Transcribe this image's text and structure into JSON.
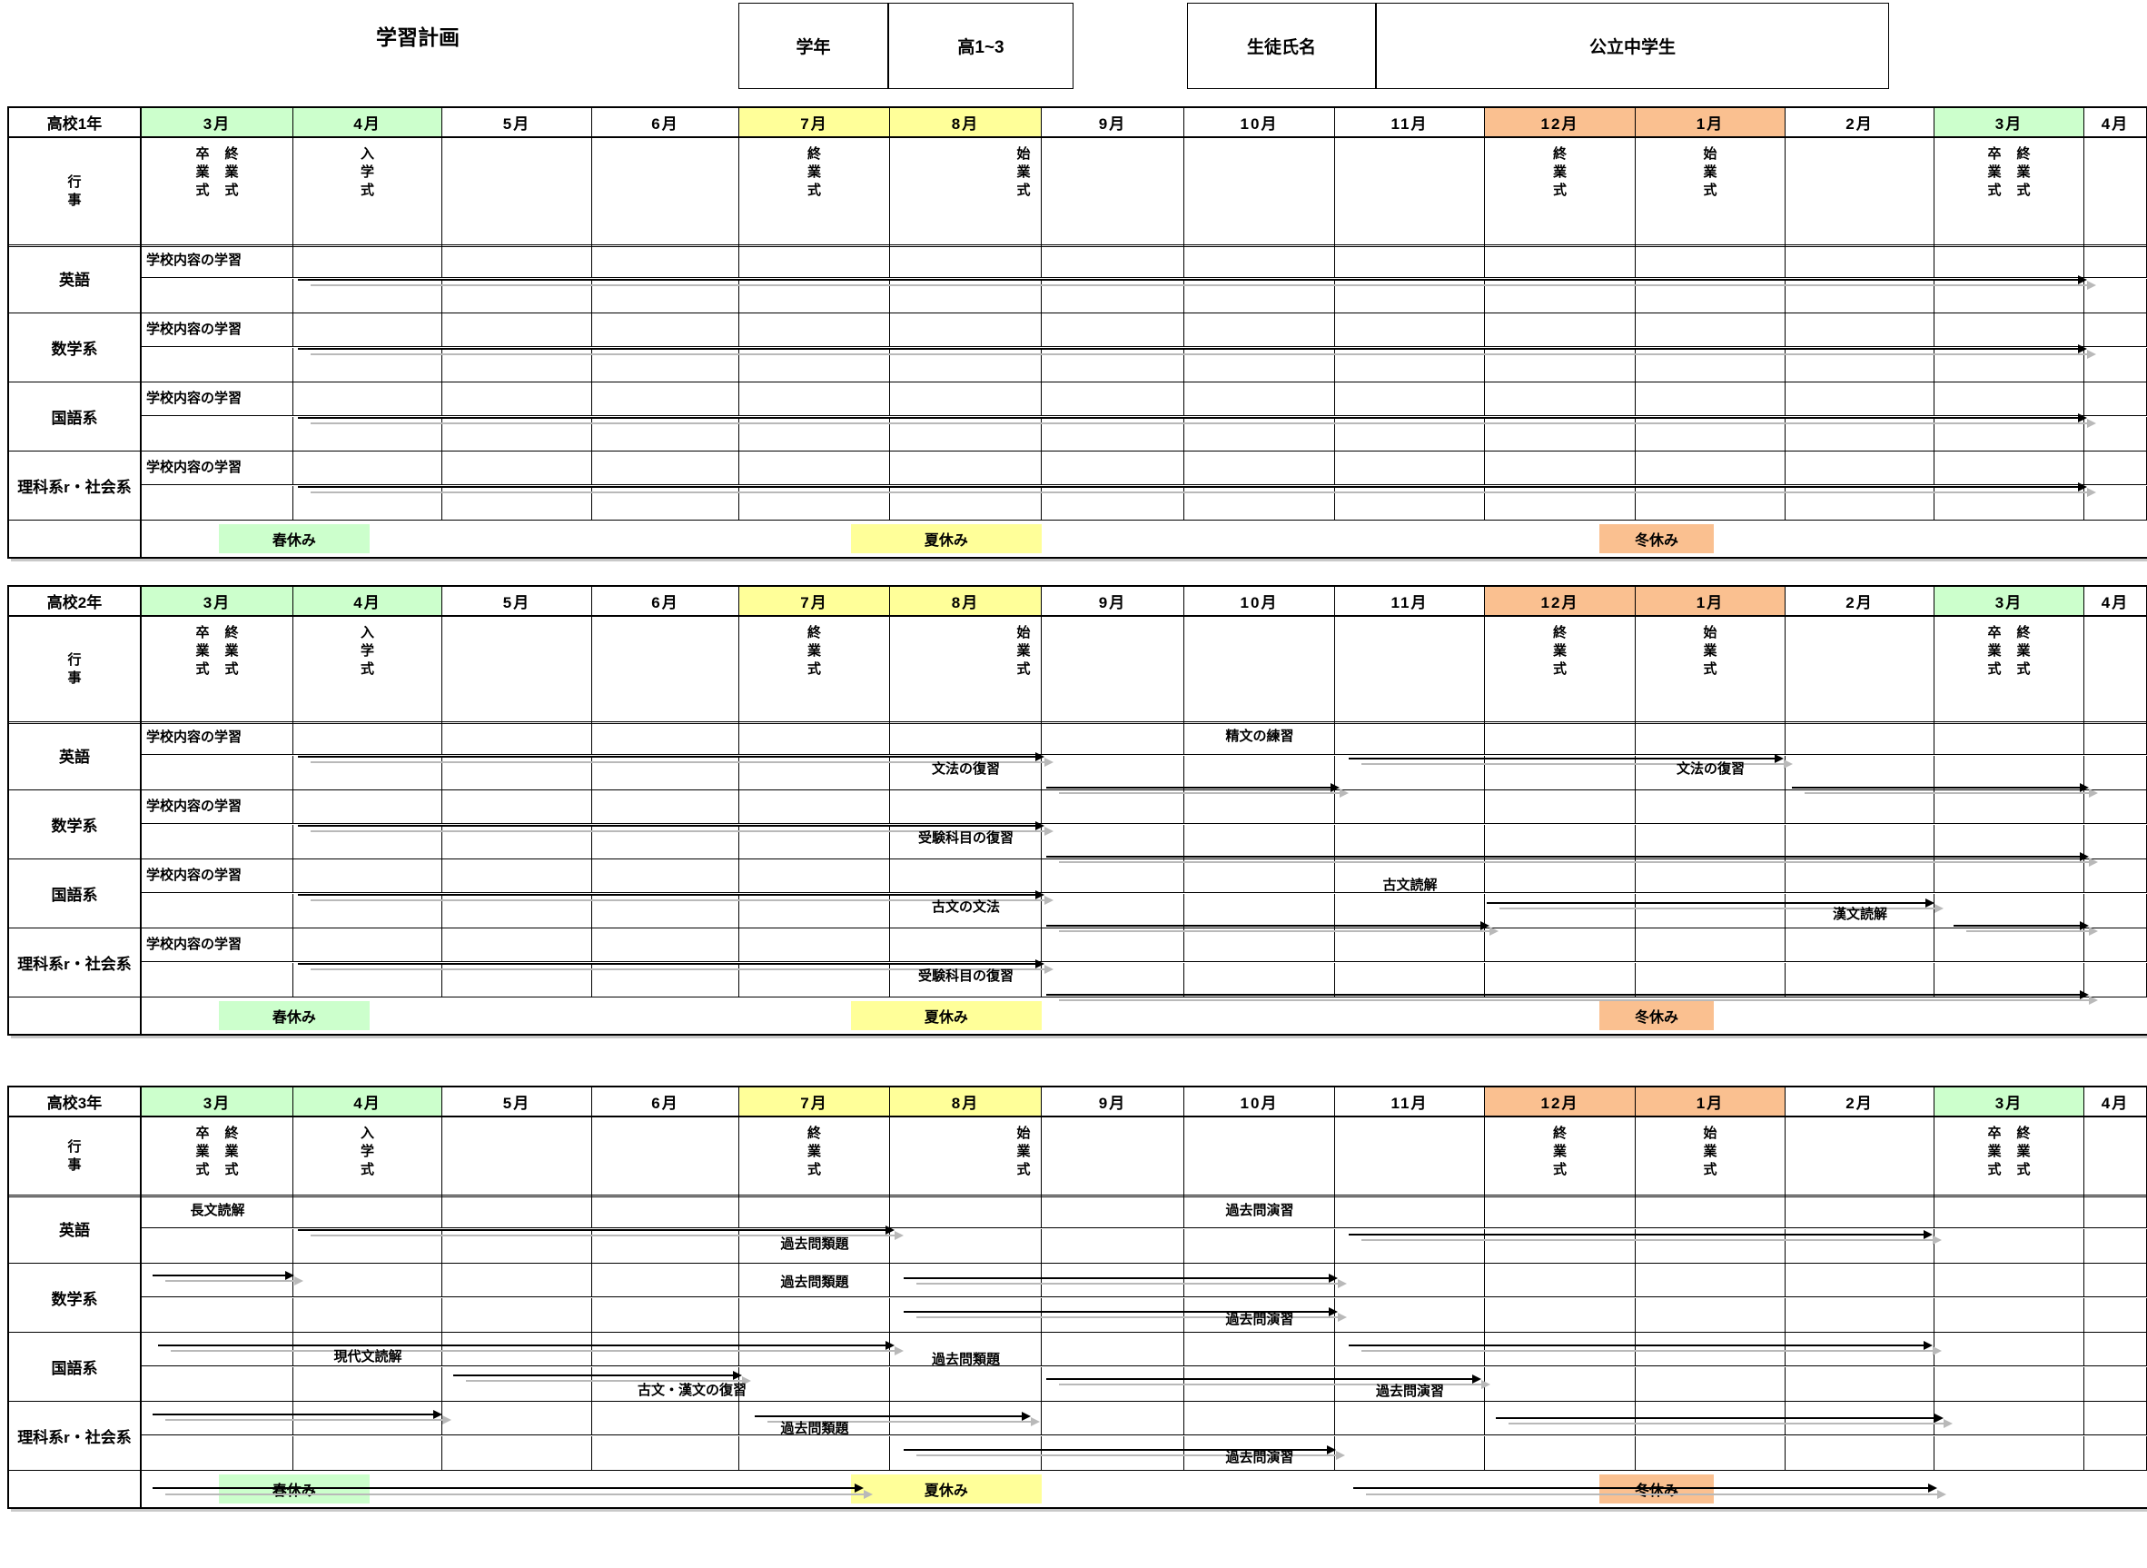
{
  "form": {
    "title": "学習計画",
    "grade_label": "学年",
    "grade_value": "高1~3",
    "student_label": "生徒氏名",
    "student_value": "公立中学生"
  },
  "colors": {
    "spring_green": "#ccffcc",
    "summer_yellow": "#ffff99",
    "winter_orange": "#fac090",
    "arrow_black": "#000000",
    "arrow_shadow": "#b9b9b9"
  },
  "months": [
    {
      "label": "3月",
      "bg": "#ccffcc"
    },
    {
      "label": "4月",
      "bg": "#ccffcc"
    },
    {
      "label": "5月",
      "bg": ""
    },
    {
      "label": "6月",
      "bg": ""
    },
    {
      "label": "7月",
      "bg": "#ffff99"
    },
    {
      "label": "8月",
      "bg": "#ffff99"
    },
    {
      "label": "9月",
      "bg": ""
    },
    {
      "label": "10月",
      "bg": ""
    },
    {
      "label": "11月",
      "bg": ""
    },
    {
      "label": "12月",
      "bg": "#fac090"
    },
    {
      "label": "1月",
      "bg": "#fac090"
    },
    {
      "label": "2月",
      "bg": ""
    },
    {
      "label": "3月",
      "bg": "#ccffcc"
    },
    {
      "label": "4月",
      "bg": ""
    }
  ],
  "gyoji_label": "行事",
  "events": [
    {
      "m": 1,
      "texts": [
        "卒業式",
        "終業式"
      ]
    },
    {
      "m": 2,
      "texts": [
        "入学式"
      ]
    },
    {
      "m": 5,
      "texts": [
        "終業式"
      ]
    },
    {
      "m": 6,
      "texts": [
        "始業式"
      ],
      "align": "right"
    },
    {
      "m": 10,
      "texts": [
        "終業式"
      ]
    },
    {
      "m": 11,
      "texts": [
        "始業式"
      ]
    },
    {
      "m": 13,
      "texts": [
        "卒業式",
        "終業式"
      ]
    }
  ],
  "breaks": [
    {
      "label": "春休み",
      "color": "#ccffcc",
      "s": 1.51,
      "e": 2.51
    },
    {
      "label": "夏休み",
      "color": "#ffff99",
      "s": 5.74,
      "e": 7.0
    },
    {
      "label": "冬休み",
      "color": "#fac090",
      "s": 10.76,
      "e": 11.52
    }
  ],
  "tables": [
    {
      "year": "高校1年",
      "subjects": [
        {
          "name": "英語",
          "items": [
            {
              "t": "label",
              "text": "学校内容の学習"
            },
            {
              "t": "arrow",
              "s": 2.03,
              "e": 13.97,
              "y": 0.5
            }
          ]
        },
        {
          "name": "数学系",
          "items": [
            {
              "t": "label",
              "text": "学校内容の学習"
            },
            {
              "t": "arrow",
              "s": 2.03,
              "e": 13.97,
              "y": 0.5
            }
          ]
        },
        {
          "name": "国語系",
          "items": [
            {
              "t": "label",
              "text": "学校内容の学習"
            },
            {
              "t": "arrow",
              "s": 2.03,
              "e": 13.97,
              "y": 0.5
            }
          ]
        },
        {
          "name": "理科系r・社会系",
          "items": [
            {
              "t": "label",
              "text": "学校内容の学習"
            },
            {
              "t": "arrow",
              "s": 2.03,
              "e": 13.97,
              "y": 0.5
            }
          ]
        }
      ],
      "break_arrows": []
    },
    {
      "year": "高校2年",
      "subjects": [
        {
          "name": "英語",
          "items": [
            {
              "t": "label",
              "text": "学校内容の学習"
            },
            {
              "t": "arrow",
              "s": 2.03,
              "e": 6.97,
              "y": 0.5
            },
            {
              "t": "text",
              "text": "精文の練習",
              "m": 8,
              "y": 0.22
            },
            {
              "t": "arrow",
              "s": 9.09,
              "e": 11.94,
              "y": 0.52
            },
            {
              "t": "text",
              "text": "文法の復習",
              "m": 6,
              "y": 0.7
            },
            {
              "t": "arrow",
              "s": 7.03,
              "e": 8.98,
              "y": 0.95
            },
            {
              "t": "text",
              "text": "文法の復習",
              "m": 11,
              "y": 0.7
            },
            {
              "t": "arrow",
              "s": 12.04,
              "e": 13.98,
              "y": 0.95
            }
          ]
        },
        {
          "name": "数学系",
          "items": [
            {
              "t": "label",
              "text": "学校内容の学習"
            },
            {
              "t": "arrow",
              "s": 2.03,
              "e": 6.97,
              "y": 0.5
            },
            {
              "t": "text",
              "text": "受験科目の復習",
              "m": 6,
              "y": 0.7
            },
            {
              "t": "arrow",
              "s": 7.03,
              "e": 13.98,
              "y": 0.95
            }
          ]
        },
        {
          "name": "国語系",
          "items": [
            {
              "t": "label",
              "text": "学校内容の学習"
            },
            {
              "t": "arrow",
              "s": 2.03,
              "e": 6.97,
              "y": 0.5
            },
            {
              "t": "text",
              "text": "古文読解",
              "m": 9,
              "y": 0.38
            },
            {
              "t": "arrow",
              "s": 10.01,
              "e": 12.95,
              "y": 0.62
            },
            {
              "t": "text",
              "text": "古文の文法",
              "m": 6,
              "y": 0.7
            },
            {
              "t": "arrow",
              "s": 7.03,
              "e": 9.98,
              "y": 0.95
            },
            {
              "t": "text",
              "text": "漢文読解",
              "m": 12,
              "y": 0.8
            },
            {
              "t": "arrow",
              "s": 13.13,
              "e": 13.98,
              "y": 0.95
            }
          ]
        },
        {
          "name": "理科系r・社会系",
          "items": [
            {
              "t": "label",
              "text": "学校内容の学習"
            },
            {
              "t": "arrow",
              "s": 2.03,
              "e": 6.97,
              "y": 0.5
            },
            {
              "t": "text",
              "text": "受験科目の復習",
              "m": 6,
              "y": 0.7
            },
            {
              "t": "arrow",
              "s": 7.03,
              "e": 13.98,
              "y": 0.95
            }
          ]
        }
      ],
      "break_arrows": []
    },
    {
      "year": "高校3年",
      "subjects": [
        {
          "name": "英語",
          "items": [
            {
              "t": "text",
              "text": "長文読解",
              "m": 1,
              "y": 0.24
            },
            {
              "t": "text",
              "text": "過去問演習",
              "m": 8,
              "y": 0.24
            },
            {
              "t": "arrow",
              "s": 2.03,
              "e": 5.98,
              "y": 0.5
            },
            {
              "t": "text",
              "text": "過去問類題",
              "m": 5,
              "y": 0.72
            },
            {
              "t": "arrow",
              "s": 9.09,
              "e": 12.94,
              "y": 0.56
            }
          ]
        },
        {
          "name": "数学系",
          "items": [
            {
              "t": "arrow",
              "s": 1.07,
              "e": 1.96,
              "y": 0.16
            },
            {
              "t": "text",
              "text": "過去問類題",
              "m": 5,
              "y": 0.28
            },
            {
              "t": "arrow",
              "s": 6.09,
              "e": 8.97,
              "y": 0.2
            },
            {
              "t": "arrow",
              "s": 6.09,
              "e": 8.97,
              "y": 0.68
            },
            {
              "t": "text",
              "text": "過去問演習",
              "m": 8,
              "y": 0.82
            }
          ]
        },
        {
          "name": "国語系",
          "items": [
            {
              "t": "arrow",
              "s": 1.11,
              "e": 5.98,
              "y": 0.17
            },
            {
              "t": "text",
              "text": "現代文読解",
              "m": 2,
              "y": 0.36
            },
            {
              "t": "text",
              "text": "過去問類題",
              "m": 6,
              "y": 0.4
            },
            {
              "t": "arrow",
              "s": 9.09,
              "e": 12.94,
              "y": 0.17
            },
            {
              "t": "arrow",
              "s": 3.07,
              "e": 4.97,
              "y": 0.6
            },
            {
              "t": "text",
              "text": "古文・漢文の復習",
              "m": 4,
              "w": 1.35,
              "y": 0.84
            },
            {
              "t": "arrow",
              "s": 7.03,
              "e": 9.93,
              "y": 0.66
            },
            {
              "t": "text",
              "text": "過去問演習",
              "m": 9,
              "y": 0.85
            }
          ]
        },
        {
          "name": "理科系r・社会系",
          "items": [
            {
              "t": "arrow",
              "s": 1.07,
              "e": 2.95,
              "y": 0.17
            },
            {
              "t": "arrow",
              "s": 5.1,
              "e": 6.88,
              "y": 0.2
            },
            {
              "t": "text",
              "text": "過去問類題",
              "m": 5,
              "y": 0.4
            },
            {
              "t": "arrow",
              "s": 10.07,
              "e": 13.01,
              "y": 0.22
            },
            {
              "t": "arrow",
              "s": 6.09,
              "e": 8.96,
              "y": 0.68
            },
            {
              "t": "text",
              "text": "過去問演習",
              "m": 8,
              "y": 0.82
            }
          ]
        }
      ],
      "break_arrows": [
        {
          "s": 1.07,
          "e": 5.78,
          "y": 0.45
        },
        {
          "s": 9.12,
          "e": 12.97,
          "y": 0.45
        }
      ]
    }
  ]
}
